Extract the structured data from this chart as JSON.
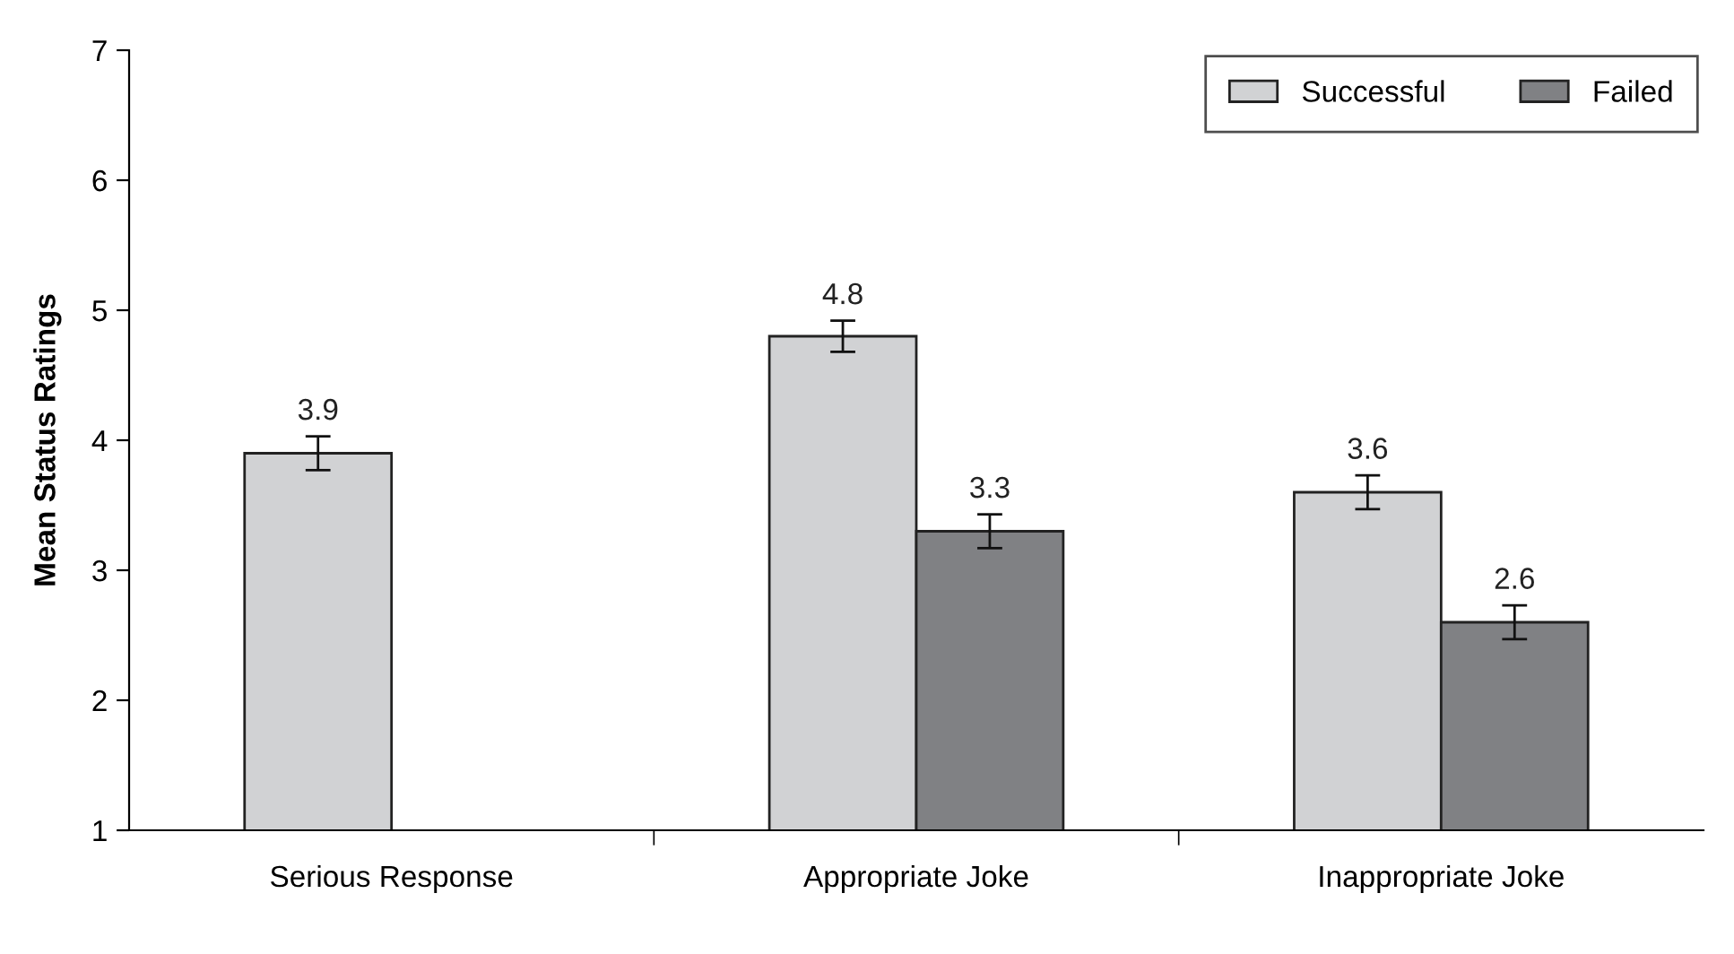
{
  "chart_data": {
    "type": "bar",
    "ylabel": "Mean Status Ratings",
    "categories": [
      "Serious Response",
      "Appropriate Joke",
      "Inappropriate Joke"
    ],
    "series": [
      {
        "name": "Successful",
        "color": "#d1d2d4",
        "values": [
          3.9,
          4.8,
          3.6
        ],
        "errors": [
          0.13,
          0.12,
          0.13
        ]
      },
      {
        "name": "Failed",
        "color": "#808184",
        "values": [
          null,
          3.3,
          2.6
        ],
        "errors": [
          null,
          0.13,
          0.13
        ]
      }
    ],
    "ylim": [
      1,
      7
    ],
    "yticks": [
      1,
      2,
      3,
      4,
      5,
      6,
      7
    ],
    "grid": false,
    "legend": "top right",
    "data_labels": true
  }
}
